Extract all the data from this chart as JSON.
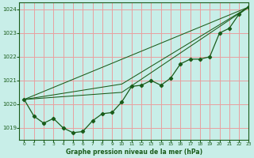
{
  "title": "Graphe pression niveau de la mer (hPa)",
  "bg_color": "#c8eee8",
  "grid_color": "#e8a0a0",
  "line_color": "#1a5c1a",
  "xlim": [
    -0.5,
    23
  ],
  "ylim": [
    1018.5,
    1024.3
  ],
  "xticks": [
    0,
    1,
    2,
    3,
    4,
    5,
    6,
    7,
    8,
    9,
    10,
    11,
    12,
    13,
    14,
    15,
    16,
    17,
    18,
    19,
    20,
    21,
    22,
    23
  ],
  "yticks": [
    1019,
    1020,
    1021,
    1022,
    1023,
    1024
  ],
  "series1": {
    "x": [
      0,
      1,
      2,
      3,
      4,
      5,
      6,
      7,
      8,
      9,
      10,
      11,
      12,
      13,
      14,
      15,
      16,
      17,
      18,
      19,
      20,
      21,
      22,
      23
    ],
    "y": [
      1020.2,
      1019.5,
      1019.2,
      1019.4,
      1019.0,
      1018.8,
      1018.85,
      1019.3,
      1019.6,
      1019.65,
      1020.1,
      1020.75,
      1020.8,
      1021.0,
      1020.8,
      1021.1,
      1021.7,
      1021.9,
      1021.9,
      1022.0,
      1023.0,
      1023.2,
      1023.8,
      1024.1
    ]
  },
  "line2": {
    "x": [
      0,
      23
    ],
    "y": [
      1020.2,
      1024.1
    ]
  },
  "line3": {
    "x": [
      0,
      10,
      23
    ],
    "y": [
      1020.2,
      1020.5,
      1024.1
    ]
  },
  "line4": {
    "x": [
      0,
      10,
      23
    ],
    "y": [
      1020.2,
      1020.85,
      1024.1
    ]
  }
}
